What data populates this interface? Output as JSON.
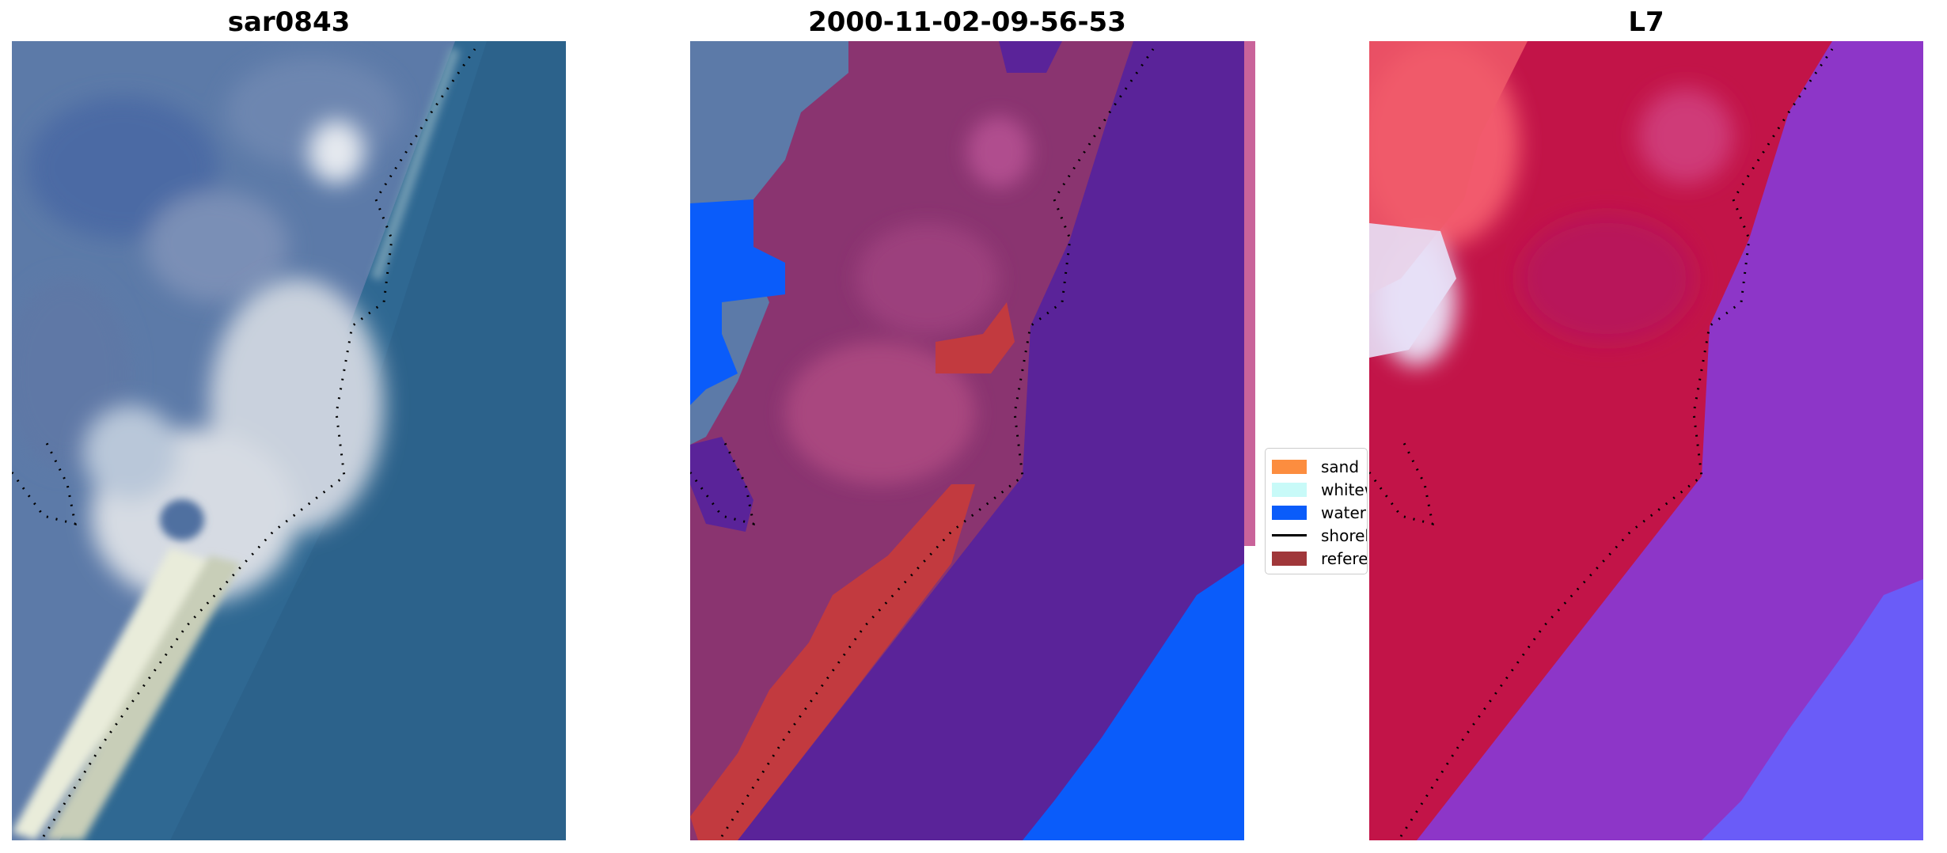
{
  "panels": [
    {
      "title": "sar0843",
      "image": "satellite-rgb-image"
    },
    {
      "title": "2000-11-02-09-56-53",
      "image": "classified-overlay-image"
    },
    {
      "title": "L7",
      "image": "probability-map-image"
    }
  ],
  "legend": {
    "items": [
      {
        "label": "sand",
        "color": "#fc8d3f"
      },
      {
        "label": "whitewater",
        "color": "#c8faf8"
      },
      {
        "label": "water",
        "color": "#0a5cfa"
      },
      {
        "label": "shoreline",
        "color": "#000000"
      },
      {
        "label": "reference",
        "color": "#a0373a"
      }
    ]
  },
  "colors": {
    "land_purple": "#8a3470",
    "ocean_purple": "#5a2399",
    "water_blue": "#0a5cfa",
    "sea_blue": "#2e6492",
    "red_land": "#c21448",
    "violet_sea": "#8d36c8"
  }
}
